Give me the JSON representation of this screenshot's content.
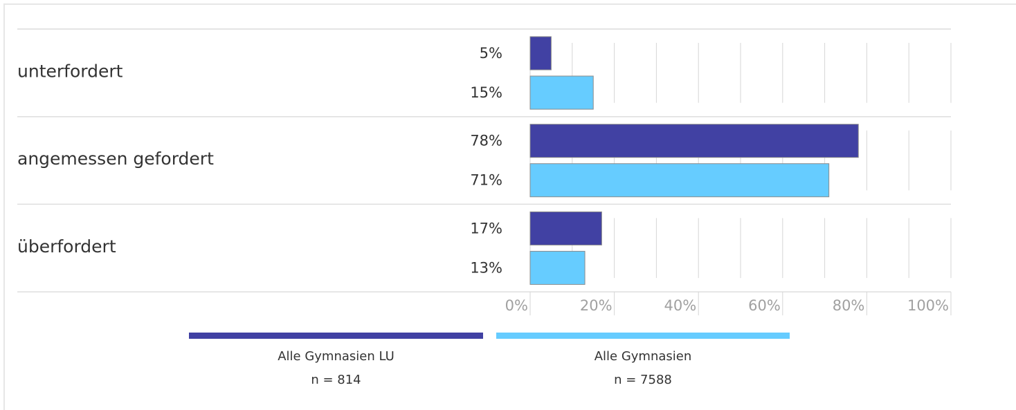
{
  "chart_data": {
    "type": "bar",
    "orientation": "horizontal",
    "categories": [
      "unterfordert",
      "angemessen gefordert",
      "überfordert"
    ],
    "series": [
      {
        "name": "Alle Gymnasien LU",
        "note": "n = 814",
        "color": "#4141a3",
        "values": [
          5,
          78,
          17
        ],
        "value_labels": [
          "5%",
          "78%",
          "17%"
        ]
      },
      {
        "name": "Alle Gymnasien",
        "note": "n = 7588",
        "color": "#66ccff",
        "values": [
          15,
          71,
          13
        ],
        "value_labels": [
          "15%",
          "71%",
          "13%"
        ]
      }
    ],
    "xlim": [
      0,
      100
    ],
    "xticks": [
      {
        "value": 0,
        "label": "0%"
      },
      {
        "value": 20,
        "label": "20%"
      },
      {
        "value": 40,
        "label": "40%"
      },
      {
        "value": 60,
        "label": "60%"
      },
      {
        "value": 80,
        "label": "80%"
      },
      {
        "value": 100,
        "label": "100%"
      }
    ],
    "xminorticks": [
      10,
      30,
      50,
      70,
      90
    ],
    "grid": true
  }
}
